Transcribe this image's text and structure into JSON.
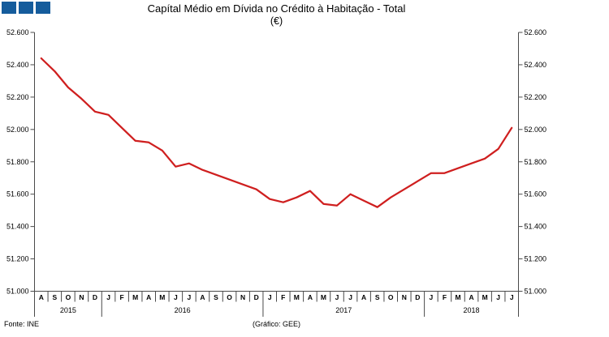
{
  "footer": {
    "source": "Fonte: INE",
    "credit": "(Gráfico: GEE)"
  },
  "colors": {
    "logo_blue": "#155c9c",
    "line_red": "#cf1f1f",
    "axis_gray": "#4a4a4a",
    "text_black": "#000000"
  },
  "logo": {
    "square_count": 3
  },
  "chart_data": {
    "type": "line",
    "title": "Capítal Médio em Dívida no Crédito à Habitação - Total",
    "unit_label": "(€)",
    "x": [
      "A",
      "S",
      "O",
      "N",
      "D",
      "J",
      "F",
      "M",
      "A",
      "M",
      "J",
      "J",
      "A",
      "S",
      "O",
      "N",
      "D",
      "J",
      "F",
      "M",
      "A",
      "M",
      "J",
      "J",
      "A",
      "S",
      "O",
      "N",
      "D",
      "J",
      "F",
      "M",
      "A",
      "M",
      "J",
      "J"
    ],
    "year_groups": [
      {
        "label": "2015",
        "months": 5
      },
      {
        "label": "2016",
        "months": 12
      },
      {
        "label": "2017",
        "months": 12
      },
      {
        "label": "2018",
        "months": 7
      }
    ],
    "series": [
      {
        "name": "Total",
        "color": "#cf1f1f",
        "values": [
          52440,
          52360,
          52260,
          52190,
          52110,
          52090,
          52010,
          51930,
          51920,
          51870,
          51770,
          51790,
          51750,
          51720,
          51690,
          51660,
          51630,
          51570,
          51550,
          51580,
          51620,
          51540,
          51530,
          51600,
          51560,
          51520,
          51580,
          51630,
          51680,
          51730,
          51730,
          51760,
          51790,
          51820,
          51880,
          52010
        ]
      }
    ],
    "ylim": [
      51000,
      52600
    ],
    "y_ticks": [
      {
        "value": 52600,
        "label": "52.600"
      },
      {
        "value": 52400,
        "label": "52.400"
      },
      {
        "value": 52200,
        "label": "52.200"
      },
      {
        "value": 52000,
        "label": "52.000"
      },
      {
        "value": 51800,
        "label": "51.800"
      },
      {
        "value": 51600,
        "label": "51.600"
      },
      {
        "value": 51400,
        "label": "51.400"
      },
      {
        "value": 51200,
        "label": "51.200"
      },
      {
        "value": 51000,
        "label": "51.000"
      }
    ],
    "grid": false,
    "legend": "none",
    "y_axis_sides": "both"
  }
}
